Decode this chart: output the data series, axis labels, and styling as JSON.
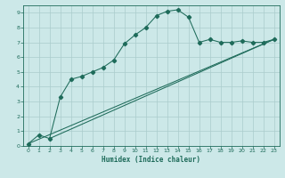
{
  "xlabel": "Humidex (Indice chaleur)",
  "bg_color": "#cce8e8",
  "grid_color": "#aacccc",
  "line_color": "#1e6b5a",
  "xlim": [
    -0.5,
    23.5
  ],
  "ylim": [
    0,
    9.5
  ],
  "xticks": [
    0,
    1,
    2,
    3,
    4,
    5,
    6,
    7,
    8,
    9,
    10,
    11,
    12,
    13,
    14,
    15,
    16,
    17,
    18,
    19,
    20,
    21,
    22,
    23
  ],
  "yticks": [
    0,
    1,
    2,
    3,
    4,
    5,
    6,
    7,
    8,
    9
  ],
  "line1_x": [
    0,
    1,
    2,
    3,
    4,
    5,
    6,
    7,
    8,
    9,
    10,
    11,
    12,
    13,
    14,
    15,
    16,
    17,
    18,
    19,
    20,
    21,
    22,
    23
  ],
  "line1_y": [
    0.15,
    0.75,
    0.5,
    3.3,
    4.5,
    4.7,
    5.0,
    5.3,
    5.8,
    6.9,
    7.5,
    8.0,
    8.8,
    9.1,
    9.2,
    8.7,
    7.0,
    7.2,
    7.0,
    7.0,
    7.1,
    7.0,
    7.0,
    7.2
  ],
  "line2_x": [
    0,
    23
  ],
  "line2_y": [
    0.15,
    7.2
  ],
  "line3_x": [
    2,
    23
  ],
  "line3_y": [
    0.5,
    7.2
  ]
}
